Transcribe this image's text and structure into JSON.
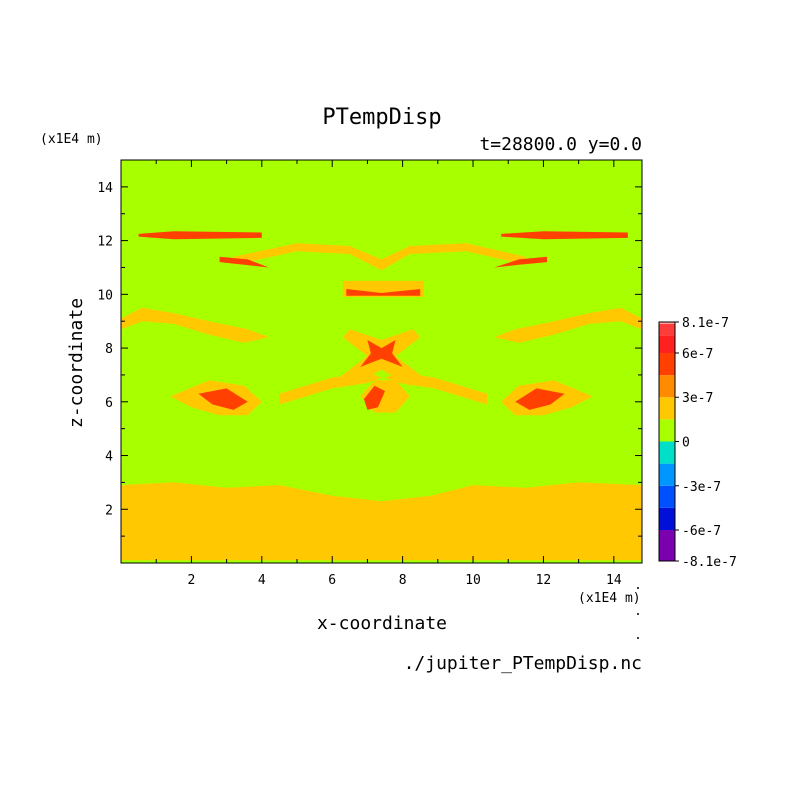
{
  "chart_data": {
    "type": "heatmap",
    "title": "PTempDisp",
    "subtitle": "t=28800.0 y=0.0",
    "xlabel": "x-coordinate",
    "ylabel": "z-coordinate",
    "x_unit": "(x1E4 m)",
    "y_unit": "(x1E4 m)",
    "source_file": "./jupiter_PTempDisp.nc",
    "xlim": [
      0,
      14.8
    ],
    "ylim": [
      0,
      15
    ],
    "x_ticks": [
      2,
      4,
      6,
      8,
      10,
      12,
      14
    ],
    "x_tick_labels": [
      "2",
      "4",
      "6",
      "8",
      "10",
      "12",
      "14"
    ],
    "y_ticks": [
      2,
      4,
      6,
      8,
      10,
      12,
      14
    ],
    "y_tick_labels": [
      "2",
      "4",
      "6",
      "8",
      "10",
      "12",
      "14"
    ],
    "colorbar": {
      "levels": [
        -8.1e-07,
        -6e-07,
        -4.5e-07,
        -3e-07,
        -1.5e-07,
        0,
        1.5e-07,
        3e-07,
        4.5e-07,
        6e-07,
        7.2e-07,
        8.1e-07
      ],
      "tick_values": [
        8.1e-07,
        6e-07,
        3e-07,
        0,
        -3e-07,
        -6e-07,
        -8.1e-07
      ],
      "tick_labels": [
        "8.1e-7",
        "6e-7",
        "3e-7",
        "0",
        "-3e-7",
        "-6e-7",
        "-8.1e-7"
      ],
      "colors": [
        "#7a00b0",
        "#0010d8",
        "#0050ff",
        "#0096ff",
        "#00e0c8",
        "#a8ff00",
        "#ffc800",
        "#ff8c00",
        "#ff4000",
        "#ff2020",
        "#ff3c3c",
        "#ffa0a0"
      ]
    },
    "background_color": "#a8ff00",
    "regions": [
      {
        "name": "lower-band",
        "level": 1.5e-07,
        "polygon": [
          [
            0,
            0.1
          ],
          [
            0,
            2.9
          ],
          [
            1.5,
            3.0
          ],
          [
            3,
            2.8
          ],
          [
            4.5,
            2.9
          ],
          [
            6,
            2.5
          ],
          [
            7.4,
            2.3
          ],
          [
            8.8,
            2.5
          ],
          [
            10,
            2.9
          ],
          [
            11.5,
            2.8
          ],
          [
            13,
            3.0
          ],
          [
            14.8,
            2.9
          ],
          [
            14.8,
            0.1
          ]
        ]
      },
      {
        "name": "top-streak-left",
        "level": 4.5e-07,
        "polygon": [
          [
            0.5,
            12.25
          ],
          [
            1.5,
            12.35
          ],
          [
            4,
            12.3
          ],
          [
            4,
            12.1
          ],
          [
            1.5,
            12.05
          ],
          [
            0.5,
            12.15
          ]
        ]
      },
      {
        "name": "top-streak-right",
        "level": 4.5e-07,
        "polygon": [
          [
            10.8,
            12.25
          ],
          [
            12,
            12.35
          ],
          [
            14.4,
            12.3
          ],
          [
            14.4,
            12.1
          ],
          [
            12,
            12.05
          ],
          [
            10.8,
            12.15
          ]
        ]
      },
      {
        "name": "arc-upper-orange",
        "level": 1.5e-07,
        "polygon": [
          [
            3.2,
            11.4
          ],
          [
            5,
            11.9
          ],
          [
            6.5,
            11.8
          ],
          [
            7.4,
            11.3
          ],
          [
            8.2,
            11.8
          ],
          [
            9.8,
            11.9
          ],
          [
            11.5,
            11.4
          ],
          [
            11.5,
            11.1
          ],
          [
            9.8,
            11.6
          ],
          [
            8.2,
            11.5
          ],
          [
            7.4,
            10.9
          ],
          [
            6.5,
            11.5
          ],
          [
            5,
            11.6
          ],
          [
            3.2,
            11.1
          ]
        ]
      },
      {
        "name": "arc-upper-red-left",
        "level": 4.5e-07,
        "polygon": [
          [
            2.8,
            11.4
          ],
          [
            3.6,
            11.3
          ],
          [
            4.2,
            11.0
          ],
          [
            3.5,
            11.1
          ],
          [
            2.8,
            11.2
          ]
        ]
      },
      {
        "name": "arc-upper-red-right",
        "level": 4.5e-07,
        "polygon": [
          [
            10.6,
            11.0
          ],
          [
            11.3,
            11.3
          ],
          [
            12.1,
            11.4
          ],
          [
            12.1,
            11.2
          ],
          [
            11.3,
            11.1
          ]
        ]
      },
      {
        "name": "mid-band-orange",
        "level": 1.5e-07,
        "polygon": [
          [
            6.3,
            10.5
          ],
          [
            8.6,
            10.5
          ],
          [
            8.6,
            9.9
          ],
          [
            6.3,
            9.9
          ]
        ]
      },
      {
        "name": "mid-band-red",
        "level": 4.5e-07,
        "polygon": [
          [
            6.4,
            10.2
          ],
          [
            7.4,
            10.05
          ],
          [
            8.5,
            10.2
          ],
          [
            8.5,
            9.95
          ],
          [
            6.4,
            9.95
          ]
        ]
      },
      {
        "name": "left-swirl-orange",
        "level": 1.5e-07,
        "polygon": [
          [
            0,
            9.1
          ],
          [
            0.6,
            9.5
          ],
          [
            1.5,
            9.3
          ],
          [
            2.5,
            9.0
          ],
          [
            3.6,
            8.7
          ],
          [
            4.2,
            8.4
          ],
          [
            3.5,
            8.2
          ],
          [
            2.5,
            8.5
          ],
          [
            1.5,
            8.9
          ],
          [
            0.6,
            9.0
          ],
          [
            0,
            8.7
          ]
        ]
      },
      {
        "name": "right-swirl-orange",
        "level": 1.5e-07,
        "polygon": [
          [
            14.8,
            9.1
          ],
          [
            14.2,
            9.5
          ],
          [
            13.3,
            9.3
          ],
          [
            12.3,
            9.0
          ],
          [
            11.2,
            8.7
          ],
          [
            10.6,
            8.4
          ],
          [
            11.3,
            8.2
          ],
          [
            12.3,
            8.5
          ],
          [
            13.3,
            8.9
          ],
          [
            14.2,
            9.0
          ],
          [
            14.8,
            8.7
          ]
        ]
      },
      {
        "name": "center-x-orange",
        "level": 1.5e-07,
        "polygon": [
          [
            6.5,
            8.7
          ],
          [
            7.4,
            8.3
          ],
          [
            8.3,
            8.7
          ],
          [
            8.5,
            8.4
          ],
          [
            7.8,
            7.7
          ],
          [
            8.6,
            6.9
          ],
          [
            8.2,
            6.6
          ],
          [
            7.4,
            7.2
          ],
          [
            6.6,
            6.6
          ],
          [
            6.2,
            6.9
          ],
          [
            7.0,
            7.7
          ],
          [
            6.3,
            8.4
          ]
        ]
      },
      {
        "name": "center-x-red",
        "level": 4.5e-07,
        "polygon": [
          [
            7.0,
            8.3
          ],
          [
            7.4,
            8.0
          ],
          [
            7.8,
            8.3
          ],
          [
            7.7,
            7.8
          ],
          [
            8.0,
            7.3
          ],
          [
            7.4,
            7.6
          ],
          [
            6.8,
            7.3
          ],
          [
            7.1,
            7.8
          ]
        ]
      },
      {
        "name": "lower-left-arc",
        "level": 1.5e-07,
        "polygon": [
          [
            4.5,
            6.3
          ],
          [
            6.0,
            6.9
          ],
          [
            7.0,
            7.1
          ],
          [
            7.4,
            6.9
          ],
          [
            7.0,
            6.7
          ],
          [
            6.0,
            6.5
          ],
          [
            4.5,
            5.9
          ]
        ]
      },
      {
        "name": "lower-right-arc",
        "level": 1.5e-07,
        "polygon": [
          [
            10.4,
            6.3
          ],
          [
            8.9,
            6.9
          ],
          [
            7.9,
            7.1
          ],
          [
            7.5,
            6.9
          ],
          [
            7.9,
            6.7
          ],
          [
            8.9,
            6.5
          ],
          [
            10.4,
            5.9
          ]
        ]
      },
      {
        "name": "left-blob-orange",
        "level": 1.5e-07,
        "polygon": [
          [
            1.4,
            6.2
          ],
          [
            2.5,
            6.8
          ],
          [
            3.5,
            6.6
          ],
          [
            4.0,
            6.0
          ],
          [
            3.6,
            5.5
          ],
          [
            2.8,
            5.5
          ],
          [
            2.0,
            5.8
          ]
        ]
      },
      {
        "name": "left-blob-red",
        "level": 4.5e-07,
        "polygon": [
          [
            2.2,
            6.3
          ],
          [
            3.0,
            6.5
          ],
          [
            3.6,
            6.0
          ],
          [
            3.2,
            5.7
          ],
          [
            2.6,
            5.9
          ]
        ]
      },
      {
        "name": "right-blob-orange",
        "level": 1.5e-07,
        "polygon": [
          [
            13.4,
            6.2
          ],
          [
            12.3,
            6.8
          ],
          [
            11.3,
            6.6
          ],
          [
            10.8,
            6.0
          ],
          [
            11.2,
            5.5
          ],
          [
            12.0,
            5.5
          ],
          [
            12.8,
            5.8
          ]
        ]
      },
      {
        "name": "right-blob-red",
        "level": 4.5e-07,
        "polygon": [
          [
            12.6,
            6.3
          ],
          [
            11.8,
            6.5
          ],
          [
            11.2,
            6.0
          ],
          [
            11.6,
            5.7
          ],
          [
            12.2,
            5.9
          ]
        ]
      },
      {
        "name": "center-ring",
        "level": 1.5e-07,
        "polygon": [
          [
            6.8,
            6.2
          ],
          [
            7.2,
            6.8
          ],
          [
            7.8,
            6.8
          ],
          [
            8.2,
            6.2
          ],
          [
            7.8,
            5.6
          ],
          [
            7.2,
            5.6
          ]
        ]
      },
      {
        "name": "center-ring-red",
        "level": 4.5e-07,
        "polygon": [
          [
            6.9,
            6.1
          ],
          [
            7.2,
            6.6
          ],
          [
            7.5,
            6.4
          ],
          [
            7.3,
            5.8
          ],
          [
            7.0,
            5.7
          ]
        ]
      }
    ]
  }
}
